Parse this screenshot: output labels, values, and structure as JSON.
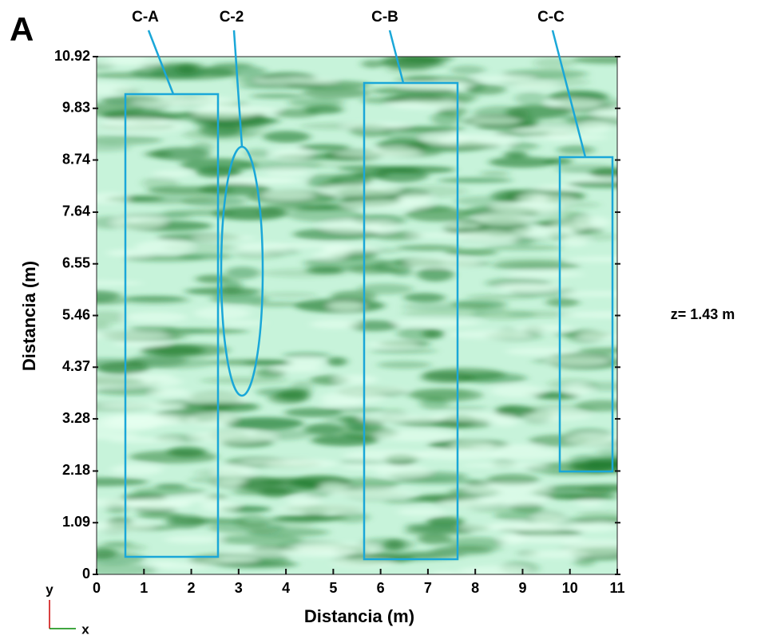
{
  "panel_label": "A",
  "chart_data": {
    "type": "heatmap",
    "xlabel": "Distancia (m)",
    "ylabel": "Distancia (m)",
    "xlim": [
      0,
      11
    ],
    "ylim": [
      0,
      10.92
    ],
    "xticks": [
      0,
      1,
      2,
      3,
      4,
      5,
      6,
      7,
      8,
      9,
      10,
      11
    ],
    "yticks": [
      0,
      1.09,
      2.18,
      3.28,
      4.37,
      5.46,
      6.55,
      7.64,
      8.74,
      9.83,
      10.92
    ],
    "annotations": [
      "C-A",
      "C-2",
      "C-B",
      "C-C"
    ],
    "depth_label": "z= 1.43 m",
    "axis_indicator": {
      "y": "y",
      "x": "x"
    }
  }
}
